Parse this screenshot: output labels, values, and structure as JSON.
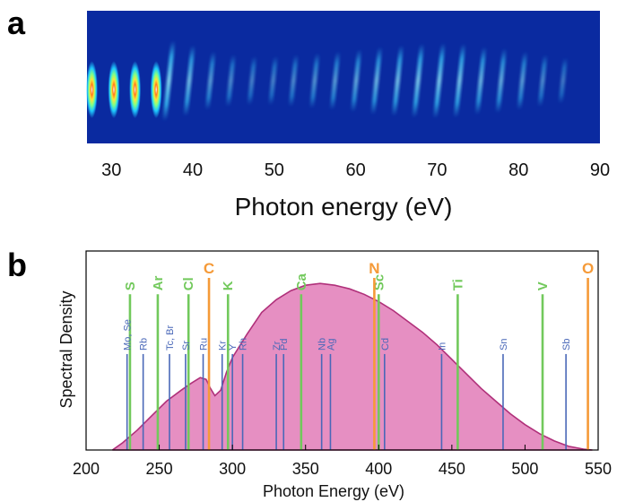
{
  "panel_a": {
    "letter": "a"
  },
  "panel_b": {
    "letter": "b"
  },
  "colors": {
    "detector_bg": "#0a2aa0",
    "fill": "#e68fc2",
    "fill_edge": "#b0307a",
    "line_blue": "#4a68b8",
    "line_green": "#72c95c",
    "line_orange": "#f59a38"
  },
  "chart_data": [
    {
      "type": "heatmap",
      "title": "",
      "xlabel": "Photon energy (eV)",
      "ylabel": "",
      "xlim": [
        27,
        90
      ],
      "x_ticks": [
        30,
        40,
        50,
        60,
        70,
        80,
        90
      ],
      "harmonic_energies": [
        27.6,
        30.3,
        32.9,
        35.5,
        38.1,
        40.6,
        43.2,
        45.7,
        48.3,
        50.9,
        53.4,
        56.0,
        58.5,
        61.1,
        63.6,
        66.2,
        68.7,
        71.3,
        73.8,
        76.4,
        78.9,
        81.5,
        84.0,
        86.5
      ],
      "relative_intensity": [
        0.95,
        0.95,
        0.9,
        0.85,
        0.7,
        0.55,
        0.35,
        0.25,
        0.2,
        0.2,
        0.25,
        0.3,
        0.35,
        0.42,
        0.5,
        0.55,
        0.6,
        0.62,
        0.6,
        0.5,
        0.45,
        0.35,
        0.25,
        0.15
      ]
    },
    {
      "type": "area",
      "title": "",
      "xlabel": "Photon Energy (eV)",
      "ylabel": "Spectral Density",
      "xlim": [
        200,
        550
      ],
      "ylim": [
        0,
        1
      ],
      "x_ticks": [
        200,
        250,
        300,
        350,
        400,
        450,
        500,
        550
      ],
      "grid": false,
      "spectrum": {
        "x": [
          218,
          225,
          235,
          245,
          255,
          265,
          272,
          278,
          282,
          285,
          288,
          292,
          296,
          300,
          310,
          320,
          330,
          340,
          350,
          360,
          370,
          380,
          390,
          400,
          410,
          420,
          430,
          440,
          450,
          460,
          470,
          480,
          490,
          500,
          510,
          520,
          530,
          540,
          546
        ],
        "y": [
          0.0,
          0.04,
          0.11,
          0.19,
          0.27,
          0.33,
          0.37,
          0.4,
          0.39,
          0.34,
          0.3,
          0.33,
          0.43,
          0.51,
          0.64,
          0.76,
          0.83,
          0.88,
          0.91,
          0.92,
          0.91,
          0.89,
          0.86,
          0.82,
          0.77,
          0.71,
          0.65,
          0.58,
          0.5,
          0.42,
          0.34,
          0.27,
          0.2,
          0.14,
          0.09,
          0.05,
          0.02,
          0.005,
          0.0
        ]
      },
      "element_lines": [
        {
          "label": "S",
          "x": 230,
          "top": 0.86,
          "group": "green"
        },
        {
          "label": "Ar",
          "x": 249,
          "top": 0.86,
          "group": "green"
        },
        {
          "label": "Cl",
          "x": 270,
          "top": 0.86,
          "group": "green"
        },
        {
          "label": "K",
          "x": 297,
          "top": 0.86,
          "group": "green"
        },
        {
          "label": "Ca",
          "x": 347,
          "top": 0.86,
          "group": "green"
        },
        {
          "label": "Sc",
          "x": 400,
          "top": 0.86,
          "group": "green"
        },
        {
          "label": "Ti",
          "x": 454,
          "top": 0.86,
          "group": "green"
        },
        {
          "label": "V",
          "x": 512,
          "top": 0.86,
          "group": "green"
        },
        {
          "label": "C",
          "x": 284,
          "top": 0.96,
          "group": "orange"
        },
        {
          "label": "N",
          "x": 397,
          "top": 0.96,
          "group": "orange"
        },
        {
          "label": "O",
          "x": 543,
          "top": 0.96,
          "group": "orange"
        },
        {
          "label": "Mo, Se",
          "x": 228,
          "top": 0.53,
          "group": "blue"
        },
        {
          "label": "Rb",
          "x": 239,
          "top": 0.53,
          "group": "blue"
        },
        {
          "label": "Tc, Br",
          "x": 257,
          "top": 0.53,
          "group": "blue"
        },
        {
          "label": "Sr",
          "x": 268,
          "top": 0.53,
          "group": "blue"
        },
        {
          "label": "Ru",
          "x": 280,
          "top": 0.53,
          "group": "blue"
        },
        {
          "label": "Kr",
          "x": 293,
          "top": 0.53,
          "group": "blue"
        },
        {
          "label": "Y",
          "x": 300,
          "top": 0.53,
          "group": "blue"
        },
        {
          "label": "Rh",
          "x": 307,
          "top": 0.53,
          "group": "blue"
        },
        {
          "label": "Zr",
          "x": 330,
          "top": 0.53,
          "group": "blue"
        },
        {
          "label": "Pd",
          "x": 335,
          "top": 0.53,
          "group": "blue"
        },
        {
          "label": "Nb",
          "x": 361,
          "top": 0.53,
          "group": "blue"
        },
        {
          "label": "Ag",
          "x": 367,
          "top": 0.53,
          "group": "blue"
        },
        {
          "label": "Cd",
          "x": 404,
          "top": 0.53,
          "group": "blue"
        },
        {
          "label": "In",
          "x": 443,
          "top": 0.53,
          "group": "blue"
        },
        {
          "label": "Sn",
          "x": 485,
          "top": 0.53,
          "group": "blue"
        },
        {
          "label": "Sb",
          "x": 528,
          "top": 0.53,
          "group": "blue"
        }
      ]
    }
  ]
}
